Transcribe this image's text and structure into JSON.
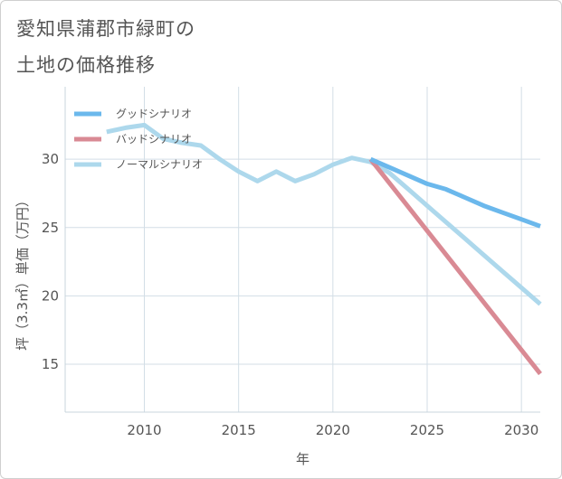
{
  "title_line1": "愛知県蒲郡市緑町の",
  "title_line2": "土地の価格推移",
  "chart_data": {
    "type": "line",
    "xlabel": "年",
    "ylabel": "坪（3.3㎡）単価（万円）",
    "xlim": [
      2005.8,
      2031
    ],
    "ylim": [
      11.5,
      35.3
    ],
    "xticks": [
      2010,
      2015,
      2020,
      2025,
      2030
    ],
    "yticks": [
      15,
      20,
      25,
      30
    ],
    "grid": true,
    "legend_position": "top-left",
    "series": [
      {
        "name": "グッドシナリオ",
        "color": "#6bb8ec",
        "x": [
          2022,
          2023,
          2024,
          2025,
          2026,
          2027,
          2028,
          2029,
          2030,
          2031
        ],
        "y": [
          30.0,
          29.4,
          28.8,
          28.2,
          27.8,
          27.2,
          26.6,
          26.1,
          25.6,
          25.1
        ]
      },
      {
        "name": "バッドシナリオ",
        "color": "#d98a94",
        "x": [
          2022,
          2031
        ],
        "y": [
          30.0,
          14.3
        ]
      },
      {
        "name": "ノーマルシナリオ",
        "color": "#add8ec",
        "x": [
          2008,
          2009,
          2010,
          2011,
          2012,
          2013,
          2014,
          2015,
          2016,
          2017,
          2018,
          2019,
          2020,
          2021,
          2022,
          2023,
          2024,
          2025,
          2026,
          2027,
          2028,
          2029,
          2030,
          2031
        ],
        "y": [
          32.0,
          32.3,
          32.5,
          31.5,
          31.2,
          31.0,
          30.0,
          29.1,
          28.4,
          29.1,
          28.4,
          28.9,
          29.6,
          30.1,
          29.8,
          29.0,
          27.8,
          26.6,
          25.4,
          24.2,
          23.0,
          21.8,
          20.6,
          19.4
        ]
      }
    ]
  }
}
